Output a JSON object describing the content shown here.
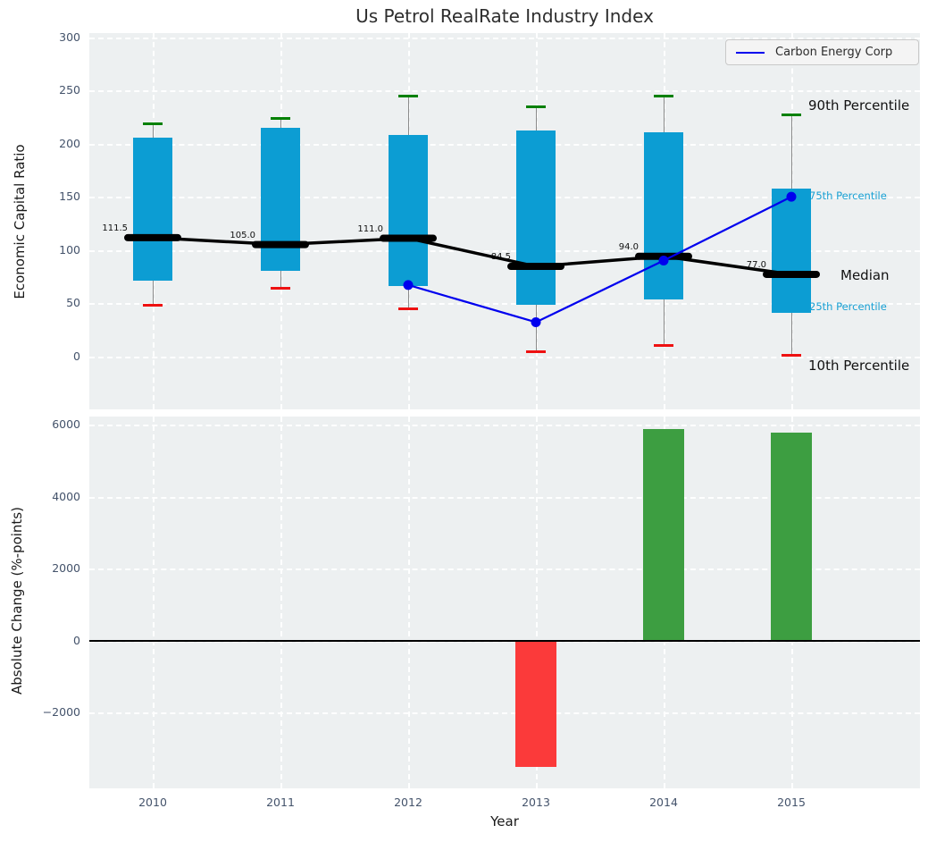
{
  "figure": {
    "title": "Us Petrol RealRate Industry Index"
  },
  "colors": {
    "axes_background": "#edf0f1",
    "box_fill": "#0c9dd3",
    "whisker": "#8a8a8a",
    "cap_top_green": "#008000",
    "cap_bottom_red": "#ee1111",
    "median_line": "#000000",
    "company_line_blue": "#0000ee",
    "bar_positive_green": "#3d9e41",
    "bar_negative_red": "#fb3a3a",
    "percentile_label_accent": "#18a0d4",
    "tick_label": "#44536b"
  },
  "legend": {
    "label": "Carbon Energy Corp"
  },
  "chart_data": [
    {
      "type": "box",
      "title": "Us Petrol RealRate Industry Index",
      "ylabel": "Economic Capital Ratio",
      "ylim": [
        -50,
        304
      ],
      "yticks": [
        300,
        250,
        200,
        150,
        100,
        50,
        0
      ],
      "categories": [
        "2010",
        "2011",
        "2012",
        "2013",
        "2014",
        "2015"
      ],
      "grid": true,
      "legend": {
        "label": "Carbon Energy Corp",
        "position": "upper right"
      },
      "boxes": [
        {
          "year": "2010",
          "p10": 48,
          "q25": 71,
          "median": 111.5,
          "q75": 206,
          "p90": 219
        },
        {
          "year": "2011",
          "p10": 64,
          "q25": 80,
          "median": 105.0,
          "q75": 215,
          "p90": 224
        },
        {
          "year": "2012",
          "p10": 45,
          "q25": 66,
          "median": 111.0,
          "q75": 208,
          "p90": 245
        },
        {
          "year": "2013",
          "p10": 4,
          "q25": 48,
          "median": 84.5,
          "q75": 212,
          "p90": 235
        },
        {
          "year": "2014",
          "p10": 10,
          "q25": 53,
          "median": 94.0,
          "q75": 211,
          "p90": 245
        },
        {
          "year": "2015",
          "p10": 0.5,
          "q25": 41,
          "median": 77.0,
          "q75": 158,
          "p90": 227
        }
      ],
      "median_value_labels": [
        "111.5",
        "105.0",
        "111.0",
        "84.5",
        "94.0",
        "77.0"
      ],
      "series": [
        {
          "name": "Carbon Energy Corp",
          "x": [
            "2012",
            "2013",
            "2014",
            "2015"
          ],
          "values": [
            67,
            32,
            90,
            150
          ]
        }
      ],
      "annotations": {
        "p90": "90th Percentile",
        "p75": "75th Percentile",
        "median": "Median",
        "p25": "25th Percentile",
        "p10": "10th Percentile"
      }
    },
    {
      "type": "bar",
      "ylabel": "Absolute Change (%-points)",
      "xlabel": "Year",
      "categories": [
        "2010",
        "2011",
        "2012",
        "2013",
        "2014",
        "2015"
      ],
      "values": [
        null,
        null,
        null,
        -3500,
        5890,
        5790
      ],
      "yticks": [
        6000,
        4000,
        2000,
        0,
        -2000
      ],
      "ylim": [
        -4100,
        6230
      ],
      "grid": true
    }
  ]
}
